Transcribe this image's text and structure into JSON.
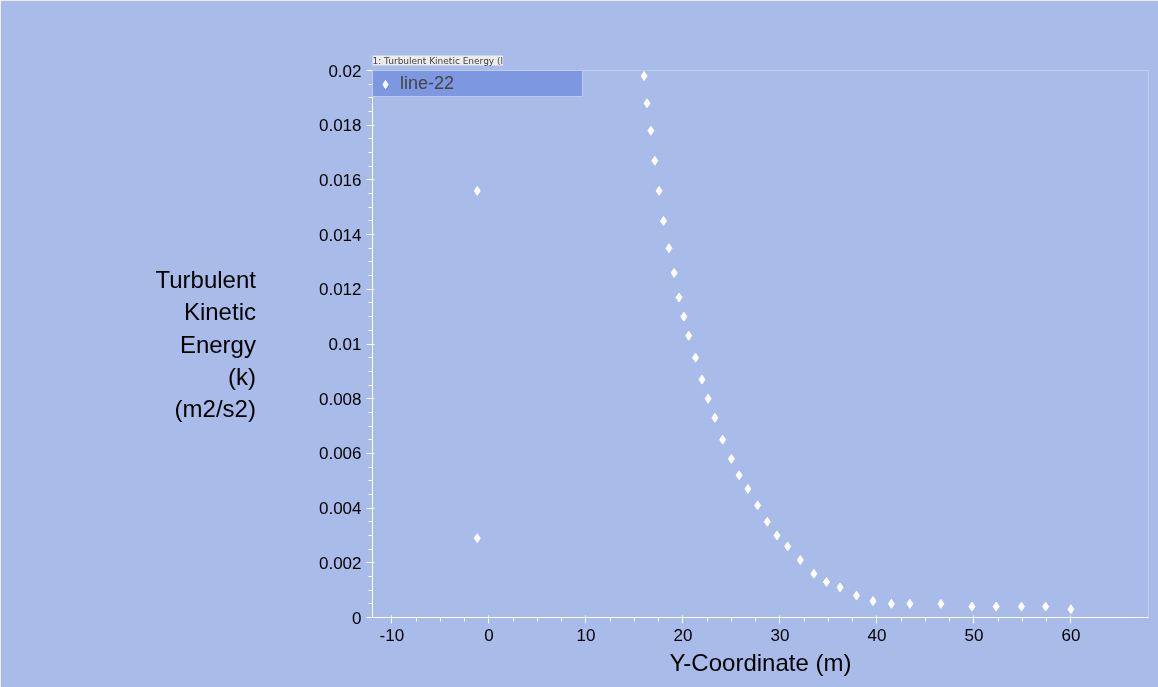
{
  "chart_data": {
    "type": "scatter",
    "title": "1: Turbulent Kinetic Energy (l",
    "xlabel": "Y-Coordinate (m)",
    "ylabel": "Turbulent Kinetic Energy (k) (m2/s2)",
    "series": [
      {
        "name": "line-22",
        "color": "#ffffff",
        "x": [
          -1.2,
          -1.2,
          16.0,
          16.3,
          16.7,
          17.1,
          17.55,
          18.0,
          18.56,
          19.1,
          19.6,
          20.1,
          20.6,
          21.3,
          21.97,
          22.6,
          23.3,
          24.1,
          25.0,
          25.8,
          26.7,
          27.7,
          28.7,
          29.7,
          30.8,
          32.1,
          33.5,
          34.8,
          36.2,
          37.9,
          39.6,
          41.5,
          43.4,
          46.6,
          49.8,
          52.3,
          54.9,
          57.4,
          60.0
        ],
        "values": [
          0.0156,
          0.0029,
          0.0198,
          0.0188,
          0.0178,
          0.0167,
          0.0156,
          0.0145,
          0.0135,
          0.0126,
          0.0117,
          0.011,
          0.0103,
          0.0095,
          0.0087,
          0.008,
          0.0073,
          0.0065,
          0.0058,
          0.0052,
          0.0047,
          0.0041,
          0.0035,
          0.003,
          0.0026,
          0.0021,
          0.0016,
          0.0013,
          0.0011,
          0.0008,
          0.0006,
          0.0005,
          0.0005,
          0.0005,
          0.0004,
          0.0004,
          0.0004,
          0.0004,
          0.0003
        ]
      }
    ],
    "xlim": [
      -12,
      68
    ],
    "ylim": [
      0,
      0.02
    ],
    "xticks": [
      -10,
      0,
      10,
      20,
      30,
      40,
      50,
      60
    ],
    "yticks": [
      0,
      0.002,
      0.004,
      0.006,
      0.008,
      0.01,
      0.012,
      0.014,
      0.016,
      0.018,
      0.02
    ],
    "grid": false,
    "legend": "top left",
    "marker": "diamond"
  }
}
